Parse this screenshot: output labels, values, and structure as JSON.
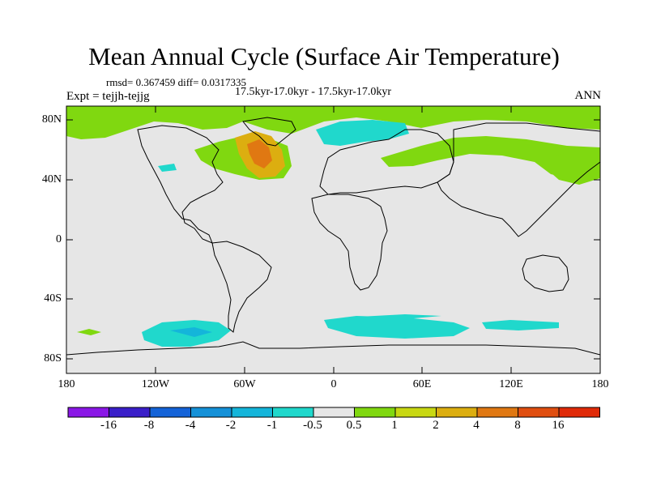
{
  "header": {
    "title": "Mean Annual Cycle (Surface Air Temperature)",
    "stats": "rmsd= 0.367459 diff= 0.0317335",
    "period": "17.5kyr-17.0kyr - 17.5kyr-17.0kyr",
    "experiment": "Expt = tejjh-tejjg",
    "season": "ANN"
  },
  "axes": {
    "y_ticks": [
      "80N",
      "40N",
      "0",
      "40S",
      "80S"
    ],
    "x_ticks": [
      "180",
      "120W",
      "60W",
      "0",
      "60E",
      "120E",
      "180"
    ]
  },
  "colorbar": {
    "labels": [
      "-16",
      "-8",
      "-4",
      "-2",
      "-1",
      "-0.5",
      "0.5",
      "1",
      "2",
      "4",
      "8",
      "16"
    ],
    "colors": [
      "#8a17e6",
      "#3a1fc9",
      "#1463d8",
      "#1591d8",
      "#14b5da",
      "#20d8cc",
      "#e6e6e6",
      "#80d810",
      "#c8d812",
      "#dcae10",
      "#e07812",
      "#e04e10",
      "#e02a08"
    ]
  },
  "colors": {
    "background_land_ocean": "#e6e6e6",
    "positive_small": "#80d810",
    "positive_large": "#dcae10",
    "positive_peak": "#e07812",
    "negative_small": "#20d8cc",
    "negative_mid": "#14b5da"
  }
}
